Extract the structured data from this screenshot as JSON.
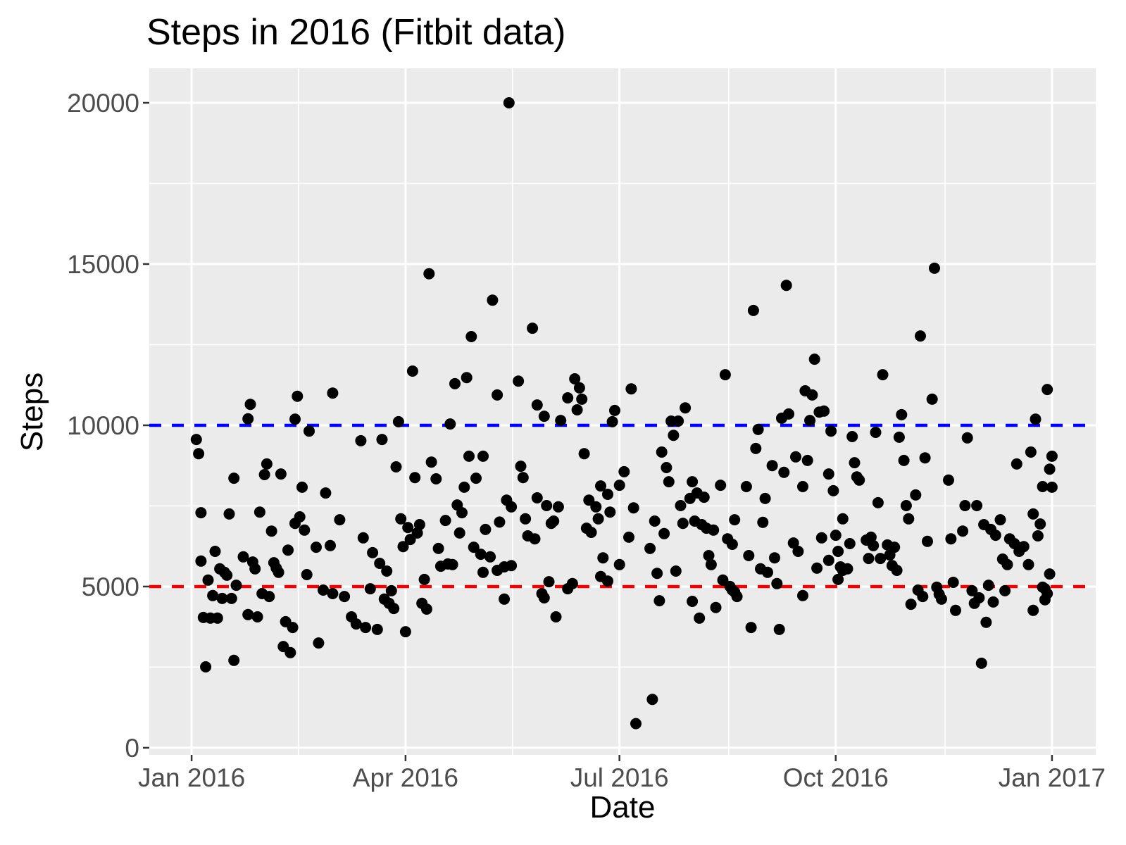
{
  "page": {
    "background": "#FFFFFF"
  },
  "chart_data": {
    "type": "scatter",
    "title": "Steps in 2016 (Fitbit data)",
    "xlabel": "Date",
    "ylabel": "Steps",
    "x_unit": "day index of 2016 (0 = Jan 1 2016, 366 = Jan 1 2017)",
    "xlim": [
      -18,
      384.6
    ],
    "ylim": [
      -220,
      21070
    ],
    "grid": "on",
    "legend": "none",
    "panel_bg": "#EBEBEB",
    "grid_major_color": "#FFFFFF",
    "grid_minor_color": "#FFFFFF",
    "axis_text_color": "#4D4D4D",
    "tick_mark_color": "#333333",
    "point_color": "#000000",
    "point_radius": 8,
    "x_ticks": [
      {
        "day": 0,
        "label": "Jan 2016"
      },
      {
        "day": 91,
        "label": "Apr 2016"
      },
      {
        "day": 182,
        "label": "Jul 2016"
      },
      {
        "day": 274,
        "label": "Oct 2016"
      },
      {
        "day": 366,
        "label": "Jan 2017"
      }
    ],
    "x_minor_days": [
      45.5,
      136.5,
      228.5,
      320.5
    ],
    "y_ticks": [
      {
        "value": 0,
        "label": "0"
      },
      {
        "value": 5000,
        "label": "5000"
      },
      {
        "value": 10000,
        "label": "10000"
      },
      {
        "value": 15000,
        "label": "15000"
      },
      {
        "value": 20000,
        "label": "20000"
      }
    ],
    "y_minor_values": [
      2500,
      7500,
      12500,
      17500
    ],
    "ref_lines": [
      {
        "y": 10000,
        "color": "#0000F5",
        "style": "dashed",
        "name": "goal-line-10000"
      },
      {
        "y": 5000,
        "color": "#F50000",
        "style": "dashed",
        "name": "goal-line-5000"
      }
    ],
    "points": [
      [
        2,
        9560
      ],
      [
        3,
        9120
      ],
      [
        4,
        7290
      ],
      [
        4,
        5790
      ],
      [
        5,
        4040
      ],
      [
        6,
        2510
      ],
      [
        7,
        5200
      ],
      [
        8,
        4020
      ],
      [
        9,
        4720
      ],
      [
        10,
        6090
      ],
      [
        11,
        4020
      ],
      [
        12,
        5550
      ],
      [
        13,
        4630
      ],
      [
        14,
        5440
      ],
      [
        15,
        5350
      ],
      [
        16,
        7250
      ],
      [
        17,
        4630
      ],
      [
        18,
        8360
      ],
      [
        18,
        2710
      ],
      [
        19,
        5040
      ],
      [
        22,
        5920
      ],
      [
        24,
        10200
      ],
      [
        24,
        4130
      ],
      [
        25,
        10650
      ],
      [
        26,
        5760
      ],
      [
        27,
        5550
      ],
      [
        28,
        4060
      ],
      [
        29,
        7310
      ],
      [
        30,
        4780
      ],
      [
        31,
        8470
      ],
      [
        32,
        8800
      ],
      [
        33,
        4690
      ],
      [
        34,
        6720
      ],
      [
        35,
        5740
      ],
      [
        36,
        5570
      ],
      [
        37,
        5440
      ],
      [
        38,
        8490
      ],
      [
        39,
        3140
      ],
      [
        40,
        3910
      ],
      [
        41,
        6130
      ],
      [
        42,
        2950
      ],
      [
        43,
        3730
      ],
      [
        44,
        6960
      ],
      [
        44,
        10190
      ],
      [
        45,
        10900
      ],
      [
        46,
        7160
      ],
      [
        47,
        8080
      ],
      [
        48,
        6750
      ],
      [
        49,
        5370
      ],
      [
        50,
        9820
      ],
      [
        53,
        6220
      ],
      [
        54,
        3250
      ],
      [
        56,
        4890
      ],
      [
        57,
        7900
      ],
      [
        59,
        6270
      ],
      [
        60,
        11000
      ],
      [
        60,
        4780
      ],
      [
        63,
        7070
      ],
      [
        65,
        4690
      ],
      [
        68,
        4060
      ],
      [
        70,
        3840
      ],
      [
        72,
        9520
      ],
      [
        73,
        6510
      ],
      [
        74,
        3730
      ],
      [
        76,
        4930
      ],
      [
        77,
        6050
      ],
      [
        79,
        3670
      ],
      [
        80,
        5720
      ],
      [
        81,
        9560
      ],
      [
        82,
        4610
      ],
      [
        83,
        5480
      ],
      [
        84,
        4480
      ],
      [
        85,
        4870
      ],
      [
        86,
        4320
      ],
      [
        87,
        8710
      ],
      [
        88,
        10110
      ],
      [
        89,
        7100
      ],
      [
        90,
        6240
      ],
      [
        91,
        3600
      ],
      [
        92,
        6830
      ],
      [
        93,
        6460
      ],
      [
        94,
        11680
      ],
      [
        95,
        8380
      ],
      [
        96,
        6660
      ],
      [
        97,
        6920
      ],
      [
        98,
        4480
      ],
      [
        99,
        5220
      ],
      [
        100,
        4300
      ],
      [
        101,
        14700
      ],
      [
        102,
        8860
      ],
      [
        104,
        8340
      ],
      [
        105,
        6180
      ],
      [
        106,
        5630
      ],
      [
        108,
        7050
      ],
      [
        109,
        5700
      ],
      [
        110,
        10040
      ],
      [
        111,
        5680
      ],
      [
        112,
        11290
      ],
      [
        113,
        7530
      ],
      [
        114,
        6660
      ],
      [
        115,
        7290
      ],
      [
        116,
        8080
      ],
      [
        117,
        11480
      ],
      [
        118,
        9040
      ],
      [
        119,
        12750
      ],
      [
        120,
        6220
      ],
      [
        121,
        8360
      ],
      [
        123,
        6000
      ],
      [
        124,
        9040
      ],
      [
        124,
        5440
      ],
      [
        125,
        6770
      ],
      [
        127,
        5920
      ],
      [
        128,
        13880
      ],
      [
        130,
        10940
      ],
      [
        130,
        5500
      ],
      [
        131,
        7000
      ],
      [
        133,
        5610
      ],
      [
        133,
        4610
      ],
      [
        134,
        7680
      ],
      [
        135,
        20000
      ],
      [
        136,
        7470
      ],
      [
        136,
        5650
      ],
      [
        139,
        11370
      ],
      [
        140,
        8730
      ],
      [
        141,
        8380
      ],
      [
        142,
        7100
      ],
      [
        143,
        6570
      ],
      [
        145,
        13010
      ],
      [
        146,
        6480
      ],
      [
        147,
        10630
      ],
      [
        147,
        7750
      ],
      [
        149,
        4780
      ],
      [
        150,
        10280
      ],
      [
        150,
        4650
      ],
      [
        151,
        7510
      ],
      [
        152,
        5150
      ],
      [
        153,
        6960
      ],
      [
        154,
        7030
      ],
      [
        155,
        4060
      ],
      [
        156,
        7470
      ],
      [
        157,
        10150
      ],
      [
        160,
        10850
      ],
      [
        160,
        4930
      ],
      [
        162,
        5090
      ],
      [
        163,
        11440
      ],
      [
        164,
        10480
      ],
      [
        165,
        11160
      ],
      [
        166,
        10810
      ],
      [
        167,
        9120
      ],
      [
        168,
        6810
      ],
      [
        169,
        7680
      ],
      [
        170,
        6680
      ],
      [
        172,
        7470
      ],
      [
        173,
        7100
      ],
      [
        174,
        8120
      ],
      [
        174,
        5310
      ],
      [
        175,
        5890
      ],
      [
        177,
        7860
      ],
      [
        177,
        5170
      ],
      [
        178,
        7310
      ],
      [
        179,
        10110
      ],
      [
        180,
        10460
      ],
      [
        182,
        8140
      ],
      [
        182,
        5680
      ],
      [
        184,
        8560
      ],
      [
        186,
        6530
      ],
      [
        187,
        11130
      ],
      [
        188,
        7440
      ],
      [
        189,
        750
      ],
      [
        195,
        6180
      ],
      [
        196,
        1500
      ],
      [
        197,
        7030
      ],
      [
        198,
        5410
      ],
      [
        199,
        4560
      ],
      [
        200,
        9170
      ],
      [
        201,
        6640
      ],
      [
        202,
        8690
      ],
      [
        203,
        8250
      ],
      [
        204,
        10130
      ],
      [
        205,
        9690
      ],
      [
        206,
        5480
      ],
      [
        207,
        10130
      ],
      [
        208,
        7510
      ],
      [
        209,
        6960
      ],
      [
        210,
        10540
      ],
      [
        212,
        7730
      ],
      [
        213,
        8250
      ],
      [
        213,
        4540
      ],
      [
        214,
        7030
      ],
      [
        215,
        7900
      ],
      [
        216,
        4020
      ],
      [
        217,
        6920
      ],
      [
        218,
        7770
      ],
      [
        219,
        6810
      ],
      [
        220,
        5960
      ],
      [
        221,
        5680
      ],
      [
        222,
        6750
      ],
      [
        223,
        4350
      ],
      [
        225,
        8140
      ],
      [
        226,
        5200
      ],
      [
        227,
        11570
      ],
      [
        228,
        6480
      ],
      [
        229,
        5000
      ],
      [
        230,
        6310
      ],
      [
        230,
        4890
      ],
      [
        231,
        7070
      ],
      [
        231,
        4830
      ],
      [
        232,
        4690
      ],
      [
        236,
        8100
      ],
      [
        237,
        5960
      ],
      [
        238,
        3730
      ],
      [
        239,
        13560
      ],
      [
        240,
        9280
      ],
      [
        241,
        9870
      ],
      [
        242,
        5550
      ],
      [
        243,
        6990
      ],
      [
        244,
        7730
      ],
      [
        245,
        5440
      ],
      [
        247,
        8750
      ],
      [
        248,
        5890
      ],
      [
        249,
        5090
      ],
      [
        250,
        3670
      ],
      [
        251,
        10220
      ],
      [
        252,
        8540
      ],
      [
        253,
        14340
      ],
      [
        254,
        10350
      ],
      [
        256,
        6350
      ],
      [
        257,
        9020
      ],
      [
        258,
        6090
      ],
      [
        260,
        8100
      ],
      [
        260,
        4720
      ],
      [
        261,
        11070
      ],
      [
        262,
        8910
      ],
      [
        263,
        10150
      ],
      [
        264,
        10940
      ],
      [
        265,
        12050
      ],
      [
        266,
        5570
      ],
      [
        267,
        10410
      ],
      [
        268,
        6510
      ],
      [
        269,
        10440
      ],
      [
        271,
        8490
      ],
      [
        271,
        5810
      ],
      [
        272,
        9820
      ],
      [
        273,
        7970
      ],
      [
        274,
        6590
      ],
      [
        275,
        6090
      ],
      [
        275,
        5220
      ],
      [
        276,
        5610
      ],
      [
        277,
        7100
      ],
      [
        277,
        5500
      ],
      [
        279,
        5550
      ],
      [
        280,
        6330
      ],
      [
        281,
        9650
      ],
      [
        282,
        8840
      ],
      [
        283,
        8400
      ],
      [
        284,
        8300
      ],
      [
        287,
        6440
      ],
      [
        288,
        5870
      ],
      [
        289,
        6530
      ],
      [
        290,
        6270
      ],
      [
        291,
        9780
      ],
      [
        292,
        7600
      ],
      [
        293,
        5870
      ],
      [
        294,
        11570
      ],
      [
        296,
        6290
      ],
      [
        297,
        5980
      ],
      [
        298,
        5650
      ],
      [
        299,
        6220
      ],
      [
        300,
        5500
      ],
      [
        301,
        9630
      ],
      [
        302,
        10330
      ],
      [
        303,
        8910
      ],
      [
        304,
        7510
      ],
      [
        305,
        7100
      ],
      [
        306,
        4450
      ],
      [
        308,
        7840
      ],
      [
        309,
        4890
      ],
      [
        310,
        12770
      ],
      [
        311,
        4690
      ],
      [
        312,
        8990
      ],
      [
        313,
        6400
      ],
      [
        315,
        10810
      ],
      [
        316,
        14870
      ],
      [
        317,
        4980
      ],
      [
        318,
        4760
      ],
      [
        319,
        4610
      ],
      [
        322,
        8300
      ],
      [
        323,
        6480
      ],
      [
        324,
        5130
      ],
      [
        325,
        4260
      ],
      [
        328,
        6720
      ],
      [
        329,
        7510
      ],
      [
        330,
        9610
      ],
      [
        332,
        4870
      ],
      [
        333,
        4480
      ],
      [
        334,
        7510
      ],
      [
        335,
        4650
      ],
      [
        336,
        2620
      ],
      [
        337,
        6920
      ],
      [
        338,
        3890
      ],
      [
        339,
        5040
      ],
      [
        340,
        6770
      ],
      [
        341,
        4520
      ],
      [
        342,
        6590
      ],
      [
        344,
        7070
      ],
      [
        345,
        5850
      ],
      [
        346,
        4870
      ],
      [
        347,
        5680
      ],
      [
        348,
        6480
      ],
      [
        350,
        6330
      ],
      [
        351,
        8800
      ],
      [
        352,
        6090
      ],
      [
        354,
        6240
      ],
      [
        356,
        5680
      ],
      [
        357,
        9170
      ],
      [
        358,
        7250
      ],
      [
        358,
        4260
      ],
      [
        359,
        10190
      ],
      [
        360,
        6570
      ],
      [
        361,
        6940
      ],
      [
        362,
        8100
      ],
      [
        362,
        4980
      ],
      [
        363,
        4930
      ],
      [
        363,
        4590
      ],
      [
        364,
        11110
      ],
      [
        364,
        4780
      ],
      [
        365,
        8640
      ],
      [
        365,
        5390
      ],
      [
        366,
        9040
      ],
      [
        366,
        8080
      ]
    ]
  }
}
